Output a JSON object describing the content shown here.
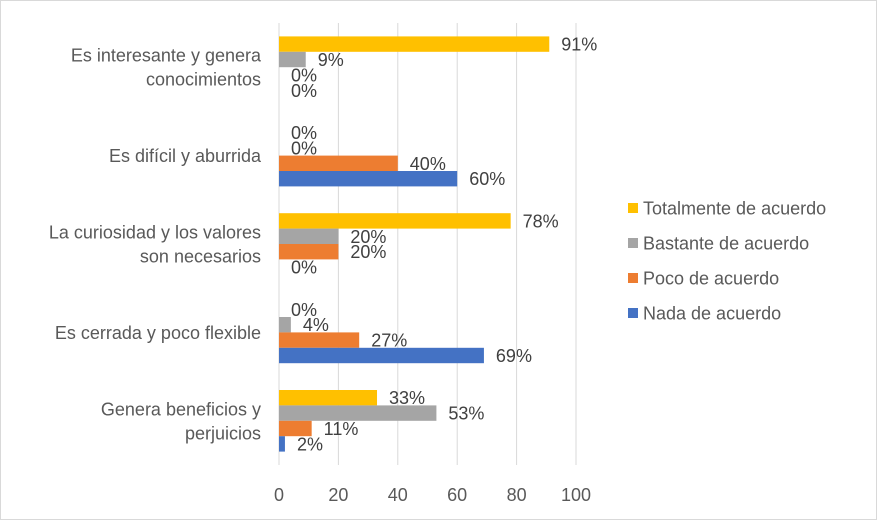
{
  "chart_data": {
    "type": "bar",
    "orientation": "horizontal",
    "categories": [
      [
        "Es interesante y genera",
        "conocimientos"
      ],
      [
        "Es difícil y aburrida"
      ],
      [
        "La curiosidad y los valores",
        "son necesarios"
      ],
      [
        "Es cerrada y poco flexible"
      ],
      [
        "Genera beneficios y",
        "perjuicios"
      ]
    ],
    "series": [
      {
        "name": "Totalmente de acuerdo",
        "color": "#FFC000",
        "values": [
          91,
          0,
          78,
          0,
          33
        ],
        "labels": [
          "91%",
          "0%",
          "78%",
          "0%",
          "33%"
        ]
      },
      {
        "name": "Bastante de acuerdo",
        "color": "#A5A5A5",
        "values": [
          9,
          0,
          20,
          4,
          53
        ],
        "labels": [
          "9%",
          "0%",
          "20%",
          "4%",
          "53%"
        ]
      },
      {
        "name": "Poco de acuerdo",
        "color": "#ED7D31",
        "values": [
          0,
          40,
          20,
          27,
          11
        ],
        "labels": [
          "0%",
          "40%",
          "20%",
          "27%",
          "11%"
        ]
      },
      {
        "name": "Nada de acuerdo",
        "color": "#4472C4",
        "values": [
          0,
          60,
          0,
          69,
          2
        ],
        "labels": [
          "0%",
          "60%",
          "0%",
          "69%",
          "2%"
        ]
      }
    ],
    "xlim": [
      0,
      100
    ],
    "xticks": [
      "0",
      "20",
      "40",
      "60",
      "80",
      "100"
    ],
    "grid": true,
    "legend": "right",
    "title": "",
    "xlabel": "",
    "ylabel": ""
  }
}
